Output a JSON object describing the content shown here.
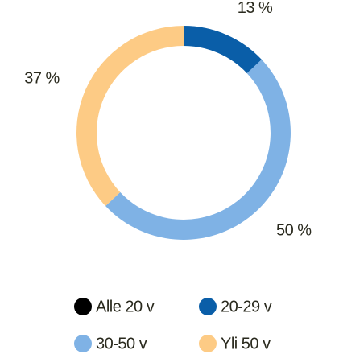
{
  "chart_data": {
    "type": "donut",
    "categories": [
      "Alle 20 v",
      "20-29 v",
      "30-50 v",
      "Yli 50 v"
    ],
    "values": [
      0,
      13,
      50,
      37
    ],
    "value_labels": [
      null,
      "13 %",
      "50 %",
      "37 %"
    ],
    "colors": [
      "#000000",
      "#0a5ea8",
      "#7fb2e5",
      "#fdcb85"
    ],
    "legend": "bottom"
  }
}
